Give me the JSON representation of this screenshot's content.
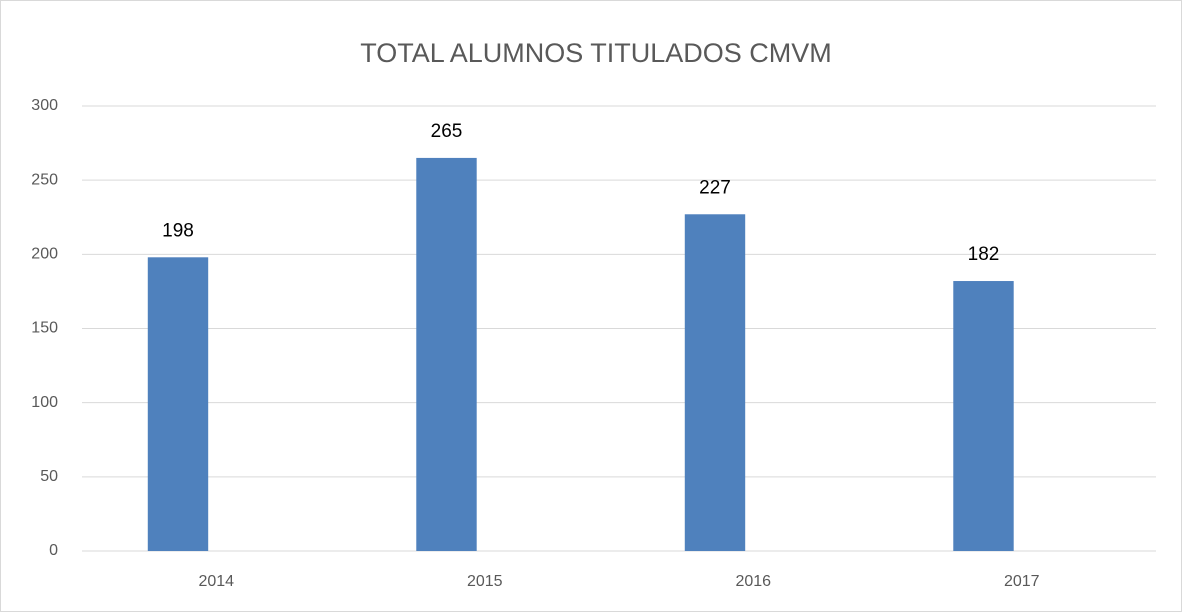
{
  "chart_data": {
    "type": "bar",
    "title": "TOTAL ALUMNOS TITULADOS CMVM",
    "categories": [
      "2014",
      "2015",
      "2016",
      "2017"
    ],
    "values": [
      198,
      265,
      227,
      182
    ],
    "color": "#4f81bd",
    "ylim": [
      0,
      300
    ],
    "yticks": [
      0,
      50,
      100,
      150,
      200,
      250,
      300
    ],
    "grid": true
  }
}
